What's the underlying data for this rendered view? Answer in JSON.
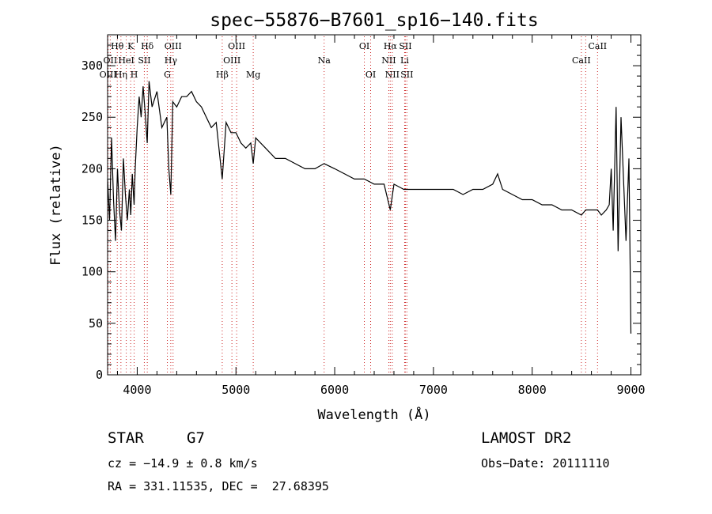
{
  "chart_data": {
    "type": "line",
    "title": "spec−55876−B7601_sp16−140.fits",
    "xlabel": "Wavelength (Å)",
    "ylabel": "Flux (relative)",
    "xlim": [
      3700,
      9100
    ],
    "ylim": [
      0,
      330
    ],
    "xticks": [
      4000,
      5000,
      6000,
      7000,
      8000,
      9000
    ],
    "yticks": [
      0,
      50,
      100,
      150,
      200,
      250,
      300
    ],
    "grid": false,
    "line_color": "#000000",
    "marker_color": "#cc2222",
    "x": [
      3700,
      3720,
      3740,
      3760,
      3780,
      3800,
      3820,
      3840,
      3860,
      3880,
      3900,
      3920,
      3935,
      3950,
      3968,
      3980,
      4000,
      4020,
      4040,
      4060,
      4080,
      4101,
      4120,
      4150,
      4200,
      4250,
      4300,
      4320,
      4340,
      4360,
      4400,
      4450,
      4500,
      4550,
      4600,
      4650,
      4700,
      4750,
      4800,
      4861,
      4900,
      4950,
      5000,
      5050,
      5100,
      5150,
      5175,
      5200,
      5300,
      5400,
      5500,
      5600,
      5700,
      5800,
      5893,
      6000,
      6100,
      6200,
      6300,
      6400,
      6500,
      6563,
      6600,
      6700,
      6800,
      6900,
      7000,
      7100,
      7200,
      7300,
      7400,
      7500,
      7600,
      7650,
      7700,
      7800,
      7900,
      8000,
      8100,
      8200,
      8300,
      8400,
      8498,
      8542,
      8600,
      8662,
      8700,
      8750,
      8780,
      8800,
      8820,
      8850,
      8870,
      8900,
      8950,
      8980,
      9000
    ],
    "y": [
      190,
      150,
      230,
      170,
      130,
      200,
      160,
      140,
      210,
      175,
      150,
      180,
      155,
      195,
      165,
      200,
      240,
      270,
      250,
      280,
      255,
      225,
      285,
      260,
      275,
      240,
      250,
      200,
      175,
      265,
      260,
      270,
      270,
      275,
      265,
      260,
      250,
      240,
      245,
      190,
      245,
      235,
      235,
      225,
      220,
      225,
      205,
      230,
      220,
      210,
      210,
      205,
      200,
      200,
      205,
      200,
      195,
      190,
      190,
      185,
      185,
      160,
      185,
      180,
      180,
      180,
      180,
      180,
      180,
      175,
      180,
      180,
      185,
      195,
      180,
      175,
      170,
      170,
      165,
      165,
      160,
      160,
      155,
      160,
      160,
      160,
      155,
      160,
      165,
      200,
      140,
      260,
      120,
      250,
      130,
      210,
      40
    ],
    "lines": [
      {
        "label": "Hθ",
        "wl": 3798,
        "pos": "top",
        "row": 0
      },
      {
        "label": "OII",
        "wl": 3727,
        "pos": "top",
        "row": 1
      },
      {
        "label": "OIII",
        "wl": 3705,
        "pos": "top",
        "row": 2
      },
      {
        "label": "K",
        "wl": 3934,
        "pos": "top",
        "row": 0
      },
      {
        "label": "HeI",
        "wl": 3889,
        "pos": "top",
        "row": 1
      },
      {
        "label": "Hη",
        "wl": 3835,
        "pos": "top",
        "row": 2
      },
      {
        "label": "H",
        "wl": 3969,
        "pos": "top",
        "row": 2
      },
      {
        "label": "Hδ",
        "wl": 4102,
        "pos": "top",
        "row": 0
      },
      {
        "label": "SII",
        "wl": 4072,
        "pos": "top",
        "row": 1
      },
      {
        "label": "OIII",
        "wl": 4363,
        "pos": "top",
        "row": 0
      },
      {
        "label": "Hγ",
        "wl": 4340,
        "pos": "top",
        "row": 1
      },
      {
        "label": "G",
        "wl": 4305,
        "pos": "top",
        "row": 2
      },
      {
        "label": "Hβ",
        "wl": 4861,
        "pos": "top",
        "row": 2
      },
      {
        "label": "OIII",
        "wl": 5007,
        "pos": "top",
        "row": 0
      },
      {
        "label": "OIII",
        "wl": 4959,
        "pos": "top",
        "row": 1
      },
      {
        "label": "Mg",
        "wl": 5175,
        "pos": "top",
        "row": 2
      },
      {
        "label": "Na",
        "wl": 5893,
        "pos": "top",
        "row": 1
      },
      {
        "label": "OI",
        "wl": 6300,
        "pos": "top",
        "row": 0
      },
      {
        "label": "OI",
        "wl": 6364,
        "pos": "top",
        "row": 2
      },
      {
        "label": "Hα",
        "wl": 6563,
        "pos": "top",
        "row": 0
      },
      {
        "label": "SII",
        "wl": 6716,
        "pos": "top",
        "row": 0
      },
      {
        "label": "NII",
        "wl": 6548,
        "pos": "top",
        "row": 1
      },
      {
        "label": "Li",
        "wl": 6708,
        "pos": "top",
        "row": 1
      },
      {
        "label": "NII",
        "wl": 6583,
        "pos": "top",
        "row": 2
      },
      {
        "label": "SII",
        "wl": 6731,
        "pos": "top",
        "row": 2
      },
      {
        "label": "CaII",
        "wl": 8662,
        "pos": "top",
        "row": 0
      },
      {
        "label": "CaII",
        "wl": 8498,
        "pos": "top",
        "row": 1
      },
      {
        "label": "",
        "wl": 8542,
        "pos": "none",
        "row": 0
      }
    ]
  },
  "info": {
    "class": "STAR",
    "subclass": "G7",
    "survey": "LAMOST DR2",
    "cz": "cz = −14.9 ± 0.8 km/s",
    "obs_date": "Obs−Date: 20111110",
    "radec": "RA = 331.11535, DEC =  27.68395"
  }
}
